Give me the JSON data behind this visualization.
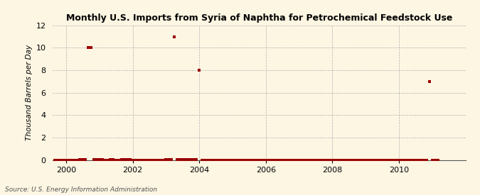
{
  "title": "Monthly U.S. Imports from Syria of Naphtha for Petrochemical Feedstock Use",
  "ylabel": "Thousand Barrels per Day",
  "source": "Source: U.S. Energy Information Administration",
  "background_color": "#fdf6e3",
  "plot_bg_color": "#fdf6e3",
  "marker_color": "#990000",
  "ylim": [
    0,
    12
  ],
  "yticks": [
    0,
    2,
    4,
    6,
    8,
    10,
    12
  ],
  "xlim": [
    1999.6,
    2012.0
  ],
  "xticks": [
    2000,
    2002,
    2004,
    2006,
    2008,
    2010
  ],
  "data_points": [
    {
      "date": 1999.667,
      "value": 0.0
    },
    {
      "date": 1999.75,
      "value": 0.0
    },
    {
      "date": 1999.833,
      "value": 0.0
    },
    {
      "date": 1999.917,
      "value": 0.0
    },
    {
      "date": 2000.0,
      "value": 0.0
    },
    {
      "date": 2000.083,
      "value": 0.0
    },
    {
      "date": 2000.167,
      "value": 0.0
    },
    {
      "date": 2000.25,
      "value": 0.0
    },
    {
      "date": 2000.333,
      "value": 0.0
    },
    {
      "date": 2000.417,
      "value": 0.05
    },
    {
      "date": 2000.5,
      "value": 0.05
    },
    {
      "date": 2000.583,
      "value": 0.05
    },
    {
      "date": 2000.667,
      "value": 10.0
    },
    {
      "date": 2000.75,
      "value": 10.0
    },
    {
      "date": 2000.833,
      "value": 0.05
    },
    {
      "date": 2000.917,
      "value": 0.05
    },
    {
      "date": 2001.0,
      "value": 0.05
    },
    {
      "date": 2001.083,
      "value": 0.05
    },
    {
      "date": 2001.167,
      "value": 0.0
    },
    {
      "date": 2001.25,
      "value": 0.0
    },
    {
      "date": 2001.333,
      "value": 0.05
    },
    {
      "date": 2001.417,
      "value": 0.05
    },
    {
      "date": 2001.5,
      "value": 0.0
    },
    {
      "date": 2001.583,
      "value": 0.0
    },
    {
      "date": 2001.667,
      "value": 0.05
    },
    {
      "date": 2001.75,
      "value": 0.05
    },
    {
      "date": 2001.833,
      "value": 0.05
    },
    {
      "date": 2001.917,
      "value": 0.05
    },
    {
      "date": 2002.0,
      "value": 0.0
    },
    {
      "date": 2002.083,
      "value": 0.0
    },
    {
      "date": 2002.167,
      "value": 0.0
    },
    {
      "date": 2002.25,
      "value": 0.0
    },
    {
      "date": 2002.333,
      "value": 0.0
    },
    {
      "date": 2002.417,
      "value": 0.0
    },
    {
      "date": 2002.5,
      "value": 0.0
    },
    {
      "date": 2002.583,
      "value": 0.0
    },
    {
      "date": 2002.667,
      "value": 0.0
    },
    {
      "date": 2002.75,
      "value": 0.0
    },
    {
      "date": 2002.833,
      "value": 0.0
    },
    {
      "date": 2002.917,
      "value": 0.0
    },
    {
      "date": 2003.0,
      "value": 0.05
    },
    {
      "date": 2003.083,
      "value": 0.05
    },
    {
      "date": 2003.167,
      "value": 0.05
    },
    {
      "date": 2003.25,
      "value": 11.0
    },
    {
      "date": 2003.333,
      "value": 0.05
    },
    {
      "date": 2003.417,
      "value": 0.05
    },
    {
      "date": 2003.5,
      "value": 0.05
    },
    {
      "date": 2003.583,
      "value": 0.05
    },
    {
      "date": 2003.667,
      "value": 0.05
    },
    {
      "date": 2003.75,
      "value": 0.05
    },
    {
      "date": 2003.833,
      "value": 0.05
    },
    {
      "date": 2003.917,
      "value": 0.05
    },
    {
      "date": 2004.0,
      "value": 8.0
    },
    {
      "date": 2004.083,
      "value": 0.0
    },
    {
      "date": 2004.167,
      "value": 0.0
    },
    {
      "date": 2004.25,
      "value": 0.0
    },
    {
      "date": 2004.333,
      "value": 0.0
    },
    {
      "date": 2004.417,
      "value": 0.0
    },
    {
      "date": 2004.5,
      "value": 0.0
    },
    {
      "date": 2004.583,
      "value": 0.0
    },
    {
      "date": 2004.667,
      "value": 0.0
    },
    {
      "date": 2004.75,
      "value": 0.0
    },
    {
      "date": 2004.833,
      "value": 0.0
    },
    {
      "date": 2004.917,
      "value": 0.0
    },
    {
      "date": 2005.0,
      "value": 0.0
    },
    {
      "date": 2005.083,
      "value": 0.0
    },
    {
      "date": 2005.167,
      "value": 0.0
    },
    {
      "date": 2005.25,
      "value": 0.0
    },
    {
      "date": 2005.333,
      "value": 0.0
    },
    {
      "date": 2005.417,
      "value": 0.0
    },
    {
      "date": 2005.5,
      "value": 0.0
    },
    {
      "date": 2005.583,
      "value": 0.0
    },
    {
      "date": 2005.667,
      "value": 0.0
    },
    {
      "date": 2005.75,
      "value": 0.0
    },
    {
      "date": 2005.833,
      "value": 0.0
    },
    {
      "date": 2005.917,
      "value": 0.0
    },
    {
      "date": 2006.0,
      "value": 0.0
    },
    {
      "date": 2006.083,
      "value": 0.0
    },
    {
      "date": 2006.167,
      "value": 0.0
    },
    {
      "date": 2006.25,
      "value": 0.0
    },
    {
      "date": 2006.333,
      "value": 0.0
    },
    {
      "date": 2006.417,
      "value": 0.0
    },
    {
      "date": 2006.5,
      "value": 0.0
    },
    {
      "date": 2006.583,
      "value": 0.0
    },
    {
      "date": 2006.667,
      "value": 0.0
    },
    {
      "date": 2006.75,
      "value": 0.0
    },
    {
      "date": 2006.833,
      "value": 0.0
    },
    {
      "date": 2006.917,
      "value": 0.0
    },
    {
      "date": 2007.0,
      "value": 0.0
    },
    {
      "date": 2007.083,
      "value": 0.0
    },
    {
      "date": 2007.167,
      "value": 0.0
    },
    {
      "date": 2007.25,
      "value": 0.0
    },
    {
      "date": 2007.333,
      "value": 0.0
    },
    {
      "date": 2007.417,
      "value": 0.0
    },
    {
      "date": 2007.5,
      "value": 0.0
    },
    {
      "date": 2007.583,
      "value": 0.0
    },
    {
      "date": 2007.667,
      "value": 0.0
    },
    {
      "date": 2007.75,
      "value": 0.0
    },
    {
      "date": 2007.833,
      "value": 0.0
    },
    {
      "date": 2007.917,
      "value": 0.0
    },
    {
      "date": 2008.0,
      "value": 0.0
    },
    {
      "date": 2008.083,
      "value": 0.0
    },
    {
      "date": 2008.167,
      "value": 0.0
    },
    {
      "date": 2008.25,
      "value": 0.0
    },
    {
      "date": 2008.333,
      "value": 0.0
    },
    {
      "date": 2008.417,
      "value": 0.0
    },
    {
      "date": 2008.5,
      "value": 0.0
    },
    {
      "date": 2008.583,
      "value": 0.0
    },
    {
      "date": 2008.667,
      "value": 0.0
    },
    {
      "date": 2008.75,
      "value": 0.0
    },
    {
      "date": 2008.833,
      "value": 0.0
    },
    {
      "date": 2008.917,
      "value": 0.0
    },
    {
      "date": 2009.0,
      "value": 0.0
    },
    {
      "date": 2009.083,
      "value": 0.0
    },
    {
      "date": 2009.167,
      "value": 0.0
    },
    {
      "date": 2009.25,
      "value": 0.0
    },
    {
      "date": 2009.333,
      "value": 0.0
    },
    {
      "date": 2009.417,
      "value": 0.0
    },
    {
      "date": 2009.5,
      "value": 0.0
    },
    {
      "date": 2009.583,
      "value": 0.0
    },
    {
      "date": 2009.667,
      "value": 0.0
    },
    {
      "date": 2009.75,
      "value": 0.0
    },
    {
      "date": 2009.833,
      "value": 0.0
    },
    {
      "date": 2009.917,
      "value": 0.0
    },
    {
      "date": 2010.0,
      "value": 0.0
    },
    {
      "date": 2010.083,
      "value": 0.0
    },
    {
      "date": 2010.167,
      "value": 0.0
    },
    {
      "date": 2010.25,
      "value": 0.0
    },
    {
      "date": 2010.333,
      "value": 0.0
    },
    {
      "date": 2010.417,
      "value": 0.0
    },
    {
      "date": 2010.5,
      "value": 0.0
    },
    {
      "date": 2010.583,
      "value": 0.0
    },
    {
      "date": 2010.667,
      "value": 0.0
    },
    {
      "date": 2010.75,
      "value": 0.0
    },
    {
      "date": 2010.833,
      "value": 0.0
    },
    {
      "date": 2010.917,
      "value": 7.0
    },
    {
      "date": 2011.0,
      "value": 0.0
    },
    {
      "date": 2011.083,
      "value": 0.0
    },
    {
      "date": 2011.167,
      "value": 0.0
    }
  ]
}
